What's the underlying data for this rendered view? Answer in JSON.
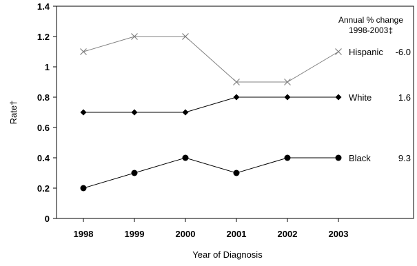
{
  "chart_data": {
    "type": "line",
    "xlabel": "Year of Diagnosis",
    "ylabel": "Rate†",
    "x": [
      "1998",
      "1999",
      "2000",
      "2001",
      "2002",
      "2003"
    ],
    "ylim": [
      0,
      1.4
    ],
    "yticks": [
      "0",
      "0.2",
      "0.4",
      "0.6",
      "0.8",
      "1",
      "1.2",
      "1.4"
    ],
    "grid": false,
    "annotation": {
      "line1": "Annual % change",
      "line2": "1998-2003‡"
    },
    "series": [
      {
        "name": "Hispanic",
        "change": "-6.0",
        "marker": "x",
        "color": "#808080",
        "values": [
          1.1,
          1.2,
          1.2,
          0.9,
          0.9,
          1.1
        ]
      },
      {
        "name": "White",
        "change": "1.6",
        "marker": "diamond",
        "color": "#000000",
        "values": [
          0.7,
          0.7,
          0.7,
          0.8,
          0.8,
          0.8
        ]
      },
      {
        "name": "Black",
        "change": "9.3",
        "marker": "circle",
        "color": "#000000",
        "values": [
          0.2,
          0.3,
          0.4,
          0.3,
          0.4,
          0.4
        ]
      }
    ]
  }
}
